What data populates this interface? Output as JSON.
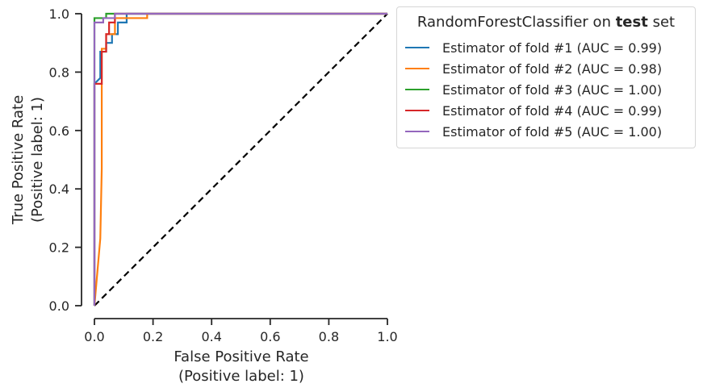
{
  "chart_data": {
    "type": "line",
    "xlabel": "False Positive Rate",
    "xlabel_sub": "(Positive label: 1)",
    "ylabel": "True Positive Rate",
    "ylabel_sub": "(Positive label: 1)",
    "xlim": [
      0.0,
      1.0
    ],
    "ylim": [
      0.0,
      1.0
    ],
    "xticks": [
      "0.0",
      "0.2",
      "0.4",
      "0.6",
      "0.8",
      "1.0"
    ],
    "yticks": [
      "0.0",
      "0.2",
      "0.4",
      "0.6",
      "0.8",
      "1.0"
    ],
    "grid": false,
    "legend": {
      "placement": "outside-right",
      "title_prefix": "RandomForestClassifier on ",
      "title_bold": "test",
      "title_suffix": " set"
    },
    "series": [
      {
        "name": "Estimator of fold #1 (AUC = 0.99)",
        "color": "#1f77b4",
        "x": [
          0.0,
          0.0,
          0.02,
          0.02,
          0.04,
          0.04,
          0.06,
          0.06,
          0.08,
          0.08,
          0.11,
          0.11,
          1.0
        ],
        "y": [
          0.0,
          0.76,
          0.78,
          0.87,
          0.87,
          0.9,
          0.9,
          0.93,
          0.93,
          0.97,
          0.97,
          1.0,
          1.0
        ]
      },
      {
        "name": "Estimator of fold #2 (AUC = 0.98)",
        "color": "#ff7f0e",
        "x": [
          0.0,
          0.02,
          0.025,
          0.025,
          0.04,
          0.04,
          0.07,
          0.07,
          0.18,
          0.18,
          1.0
        ],
        "y": [
          0.0,
          0.23,
          0.47,
          0.88,
          0.88,
          0.93,
          0.93,
          0.985,
          0.985,
          1.0,
          1.0
        ],
        "dashed": false
      },
      {
        "name": "Estimator of fold #3 (AUC = 1.00)",
        "color": "#2ca02c",
        "x": [
          0.0,
          0.0,
          0.04,
          0.04,
          1.0
        ],
        "y": [
          0.0,
          0.985,
          0.985,
          1.0,
          1.0
        ]
      },
      {
        "name": "Estimator of fold #4 (AUC = 0.99)",
        "color": "#d62728",
        "x": [
          0.0,
          0.0,
          0.025,
          0.025,
          0.04,
          0.04,
          0.05,
          0.05,
          0.07,
          0.07,
          1.0
        ],
        "y": [
          0.0,
          0.76,
          0.76,
          0.87,
          0.87,
          0.93,
          0.93,
          0.97,
          0.97,
          1.0,
          1.0
        ]
      },
      {
        "name": "Estimator of fold #5 (AUC = 1.00)",
        "color": "#9467bd",
        "x": [
          0.0,
          0.0,
          0.03,
          0.03,
          0.07,
          0.07,
          1.0
        ],
        "y": [
          0.0,
          0.97,
          0.97,
          0.985,
          0.985,
          1.0,
          1.0
        ]
      }
    ],
    "chance_line": {
      "x": [
        0.0,
        1.0
      ],
      "y": [
        0.0,
        1.0
      ],
      "color": "#000000"
    }
  }
}
